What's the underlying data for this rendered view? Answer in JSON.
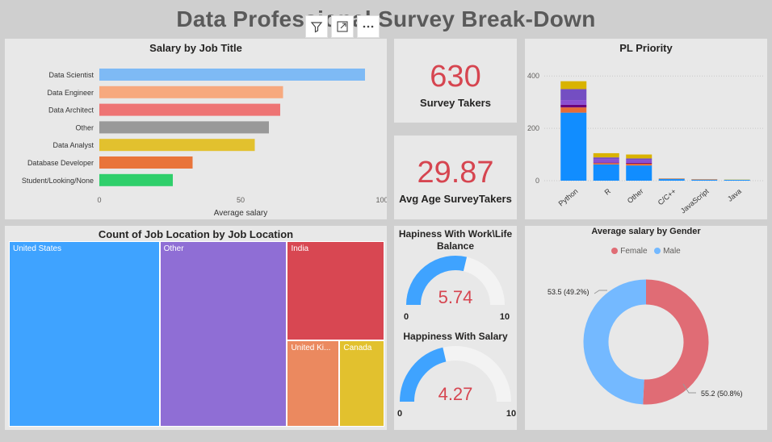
{
  "dashboard": {
    "title": "Data Professional Survey Break-Down"
  },
  "toolbar": {
    "icons": [
      "filter-icon",
      "focus-mode-icon",
      "more-options-icon"
    ]
  },
  "salary_by_job": {
    "title": "Salary by Job Title",
    "xlabel": "Average salary",
    "ticks": [
      "0",
      "50",
      "100"
    ]
  },
  "kpi": {
    "survey_takers": {
      "value": "630",
      "label": "Survey Takers"
    },
    "avg_age": {
      "value": "29.87",
      "label": "Avg Age SurveyTakers"
    }
  },
  "pl_priority": {
    "title": "PL Priority",
    "ticks": [
      "0",
      "200",
      "400"
    ]
  },
  "job_location": {
    "title": "Count of Job Location by Job Location"
  },
  "gauges": {
    "worklife": {
      "title": "Hapiness With Work\\Life Balance",
      "value": "5.74",
      "min": "0",
      "max": "10",
      "fraction": 0.574
    },
    "salary": {
      "title": "Happiness With Salary",
      "value": "4.27",
      "min": "0",
      "max": "10",
      "fraction": 0.427
    }
  },
  "gender": {
    "title": "Average salary by Gender",
    "legend": [
      "Female",
      "Male"
    ]
  },
  "chart_data": [
    {
      "type": "bar",
      "orientation": "horizontal",
      "title": "Salary by Job Title",
      "xlabel": "Average salary",
      "xlim": [
        0,
        100
      ],
      "categories": [
        "Data Scientist",
        "Data Engineer",
        "Data Architect",
        "Other",
        "Data Analyst",
        "Database Developer",
        "Student/Looking/None"
      ],
      "values": [
        94,
        65,
        64,
        60,
        55,
        33,
        26
      ],
      "colors": [
        "#7ebaf5",
        "#f7a97e",
        "#ee7474",
        "#999999",
        "#e2c12e",
        "#e9743a",
        "#2fcf6b"
      ]
    },
    {
      "type": "bar",
      "stacked": true,
      "title": "PL Priority",
      "categories": [
        "Python",
        "R",
        "Other",
        "C/C++",
        "JavaScript",
        "Java"
      ],
      "ylim": [
        0,
        450
      ],
      "series": [
        {
          "color": "#118dff",
          "values": [
            260,
            62,
            58,
            6,
            3,
            3
          ]
        },
        {
          "color": "#e66c37",
          "values": [
            20,
            5,
            7,
            1,
            1,
            0
          ]
        },
        {
          "color": "#6b007b",
          "values": [
            10,
            2,
            3,
            0,
            0,
            0
          ]
        },
        {
          "color": "#8b4fd1",
          "values": [
            18,
            14,
            12,
            1,
            1,
            0
          ]
        },
        {
          "color": "#744ec2",
          "values": [
            42,
            6,
            5,
            0,
            0,
            0
          ]
        },
        {
          "color": "#d9b300",
          "values": [
            30,
            16,
            15,
            1,
            1,
            1
          ]
        }
      ]
    },
    {
      "type": "treemap",
      "title": "Count of Job Location by Job Location",
      "categories": [
        "United States",
        "Other",
        "India",
        "United Ki...",
        "Canada"
      ],
      "values": [
        260,
        220,
        90,
        42,
        36
      ],
      "colors": [
        "#3fa3ff",
        "#8f6ed5",
        "#d84752",
        "#eb895f",
        "#e2c12e"
      ]
    },
    {
      "type": "pie",
      "donut": true,
      "title": "Average salary by Gender",
      "categories": [
        "Female",
        "Male"
      ],
      "values": [
        55.2,
        53.5
      ],
      "percents": [
        50.8,
        49.2
      ],
      "labels": [
        "55.2 (50.8%)",
        "53.5 (49.2%)"
      ],
      "colors": [
        "#e06c75",
        "#74b9ff"
      ]
    }
  ]
}
